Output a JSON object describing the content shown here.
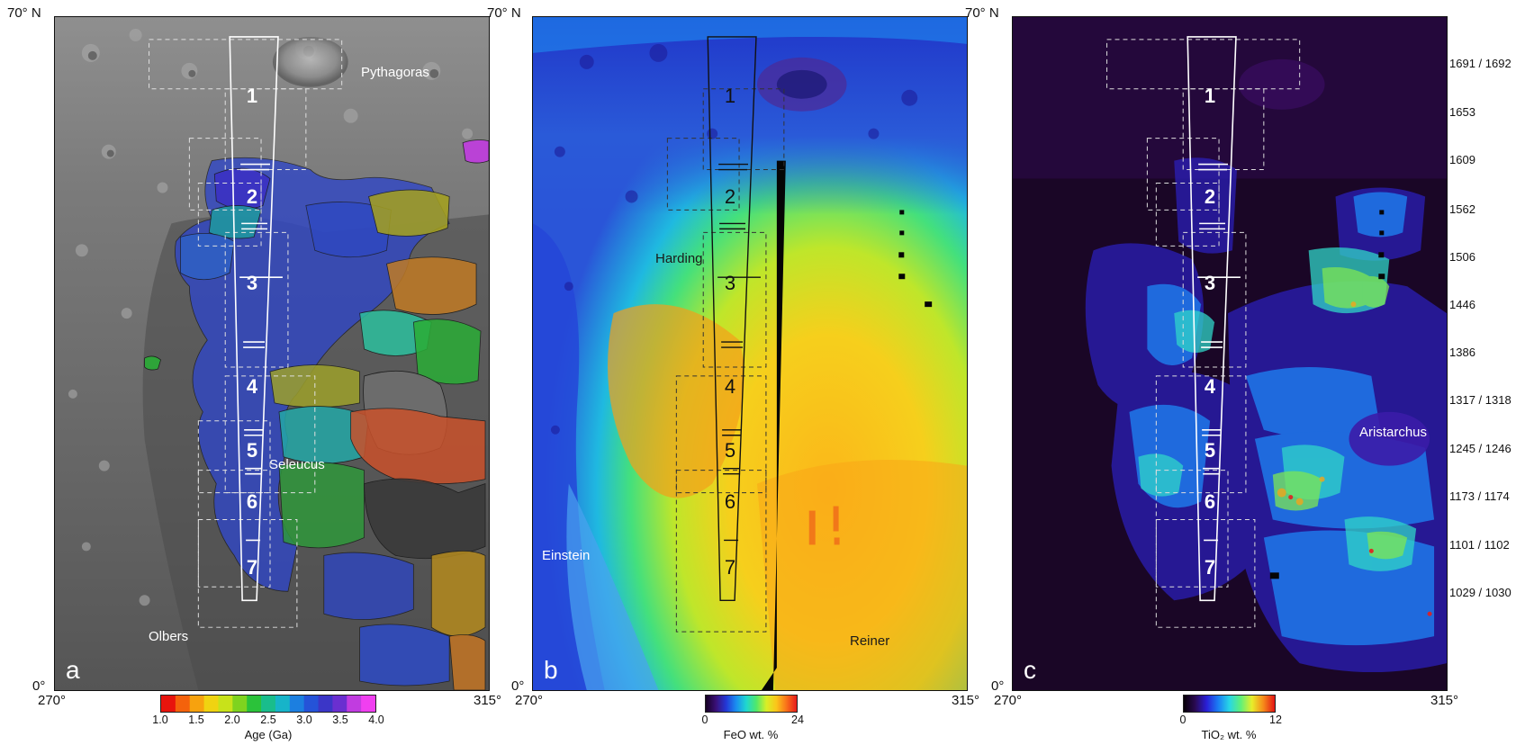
{
  "panels": {
    "a": {
      "letter": "a",
      "places": [
        "Pythagoras",
        "Seleucus",
        "Olbers"
      ]
    },
    "b": {
      "letter": "b",
      "places": [
        "Harding",
        "Einstein",
        "Reiner"
      ]
    },
    "c": {
      "letter": "c",
      "places": [
        "Aristarchus"
      ]
    }
  },
  "segments": [
    "1",
    "2",
    "3",
    "4",
    "5",
    "6",
    "7"
  ],
  "axes": {
    "top_lat": "70° N",
    "bottom_lat": "0°",
    "left_lon": "270°",
    "right_lon": "315°"
  },
  "orbits": [
    "1691 / 1692",
    "1653",
    "1609",
    "1562",
    "1506",
    "1446",
    "1386",
    "1317 / 1318",
    "1245 / 1246",
    "1173 / 1174",
    "1101 / 1102",
    "1029 / 1030"
  ],
  "colorbars": {
    "age": {
      "ticks": [
        "1.0",
        "1.5",
        "2.0",
        "2.5",
        "3.0",
        "3.5",
        "4.0"
      ],
      "title": "Age (Ga)",
      "min": 1.0,
      "max": 4.0
    },
    "feo": {
      "ticks": [
        "0",
        "24"
      ],
      "title": "FeO wt. %",
      "min": 0,
      "max": 24
    },
    "tio2": {
      "ticks": [
        "0",
        "12"
      ],
      "title": "TiO₂ wt. %",
      "min": 0,
      "max": 12
    }
  },
  "colors": {
    "frame": "#111111",
    "track_outline": "#ffffff",
    "dashed_boxes": "#dddddd",
    "age_scale": [
      "#e8140d",
      "#f4620c",
      "#f7a20e",
      "#f0d311",
      "#c8e21a",
      "#7fd31f",
      "#2bc23a",
      "#19bd8c",
      "#17b4c9",
      "#1c7fe0",
      "#2553d8",
      "#3b36c7",
      "#6a2fd0",
      "#c13ce0",
      "#f03ff0"
    ],
    "feo_scale": [
      "#160022",
      "#3a1077",
      "#2437d6",
      "#1a8ef0",
      "#1fd7d0",
      "#4fe86b",
      "#d9ef26",
      "#fbc51a",
      "#f9701a",
      "#e61b1b"
    ],
    "tio2_scale": [
      "#070007",
      "#2a0a52",
      "#2a1ed6",
      "#1a7bf4",
      "#27d6e6",
      "#5ef07a",
      "#e8ee2a",
      "#f68a1a",
      "#e31515"
    ]
  }
}
